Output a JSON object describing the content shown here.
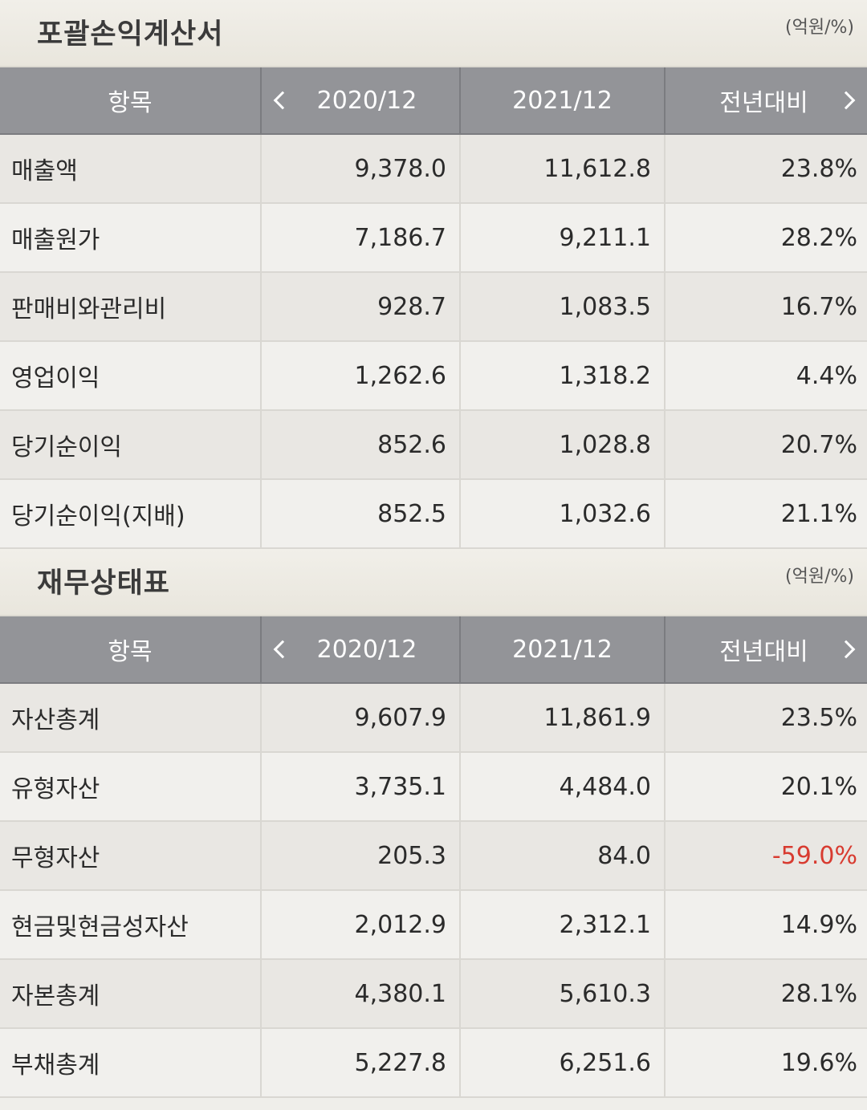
{
  "income": {
    "title": "포괄손익계산서",
    "unit": "(억원/%)",
    "headers": {
      "item": "항목",
      "period1": "2020/12",
      "period2": "2021/12",
      "change": "전년대비"
    },
    "rows": [
      {
        "name": "매출액",
        "v1": "9,378.0",
        "v2": "11,612.8",
        "chg": "23.8%"
      },
      {
        "name": "매출원가",
        "v1": "7,186.7",
        "v2": "9,211.1",
        "chg": "28.2%"
      },
      {
        "name": "판매비와관리비",
        "v1": "928.7",
        "v2": "1,083.5",
        "chg": "16.7%"
      },
      {
        "name": "영업이익",
        "v1": "1,262.6",
        "v2": "1,318.2",
        "chg": "4.4%"
      },
      {
        "name": "당기순이익",
        "v1": "852.6",
        "v2": "1,028.8",
        "chg": "20.7%"
      },
      {
        "name": "당기순이익(지배)",
        "v1": "852.5",
        "v2": "1,032.6",
        "chg": "21.1%"
      }
    ]
  },
  "balance": {
    "title": "재무상태표",
    "unit": "(억원/%)",
    "headers": {
      "item": "항목",
      "period1": "2020/12",
      "period2": "2021/12",
      "change": "전년대비"
    },
    "rows": [
      {
        "name": "자산총계",
        "v1": "9,607.9",
        "v2": "11,861.9",
        "chg": "23.5%"
      },
      {
        "name": "유형자산",
        "v1": "3,735.1",
        "v2": "4,484.0",
        "chg": "20.1%"
      },
      {
        "name": "무형자산",
        "v1": "205.3",
        "v2": "84.0",
        "chg": "-59.0%"
      },
      {
        "name": "현금및현금성자산",
        "v1": "2,012.9",
        "v2": "2,312.1",
        "chg": "14.9%"
      },
      {
        "name": "자본총계",
        "v1": "4,380.1",
        "v2": "5,610.3",
        "chg": "28.1%"
      },
      {
        "name": "부채총계",
        "v1": "5,227.8",
        "v2": "6,251.6",
        "chg": "19.6%"
      }
    ]
  },
  "colors": {
    "negative": "#d83b30",
    "header_bg": "#939498"
  }
}
